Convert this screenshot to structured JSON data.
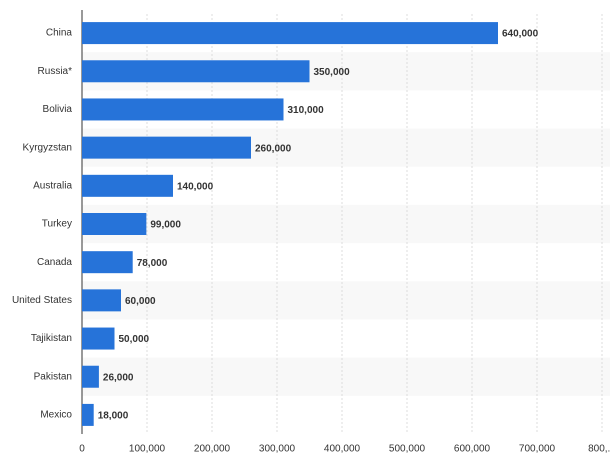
{
  "chart_data": {
    "type": "bar",
    "orientation": "horizontal",
    "categories": [
      "China",
      "Russia*",
      "Bolivia",
      "Kyrgyzstan",
      "Australia",
      "Turkey",
      "Canada",
      "United States",
      "Tajikistan",
      "Pakistan",
      "Mexico"
    ],
    "values": [
      640000,
      350000,
      310000,
      260000,
      140000,
      99000,
      78000,
      60000,
      50000,
      26000,
      18000
    ],
    "value_labels": [
      "640,000",
      "350,000",
      "310,000",
      "260,000",
      "140,000",
      "99,000",
      "78,000",
      "60,000",
      "50,000",
      "26,000",
      "18,000"
    ],
    "color": "#2673d9",
    "xlim": [
      0,
      800000
    ],
    "xticks": [
      0,
      {
        "value": 100000,
        "label": "100,000"
      },
      {
        "value": 200000,
        "label": "200,000"
      },
      {
        "value": 300000,
        "label": "300,000"
      },
      {
        "value": 400000,
        "label": "400,000"
      },
      {
        "value": 500000,
        "label": "500,000"
      },
      {
        "value": 600000,
        "label": "600,000"
      },
      {
        "value": 700000,
        "label": "700,000"
      },
      {
        "value": 800000,
        "label": "800,..."
      }
    ],
    "grid": true
  }
}
